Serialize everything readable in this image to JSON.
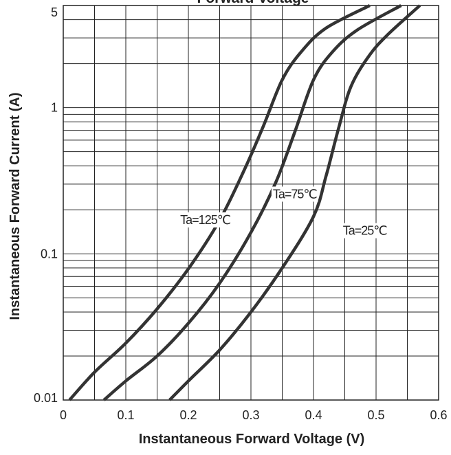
{
  "chart_data": {
    "type": "line",
    "title": "Forward Voltage",
    "xlabel": "Instantaneous Forward Voltage (V)",
    "ylabel": "Instantaneous Forward Current (A)",
    "xscale": "linear",
    "yscale": "log",
    "xlim": [
      0,
      0.6
    ],
    "ylim": [
      0.01,
      5
    ],
    "x_ticks": [
      {
        "value": 0,
        "label": "0"
      },
      {
        "value": 0.1,
        "label": "0.1"
      },
      {
        "value": 0.2,
        "label": "0.2"
      },
      {
        "value": 0.3,
        "label": "0.3"
      },
      {
        "value": 0.4,
        "label": "0.4"
      },
      {
        "value": 0.5,
        "label": "0.5"
      },
      {
        "value": 0.6,
        "label": "0.6"
      }
    ],
    "y_ticks": [
      {
        "value": 0.01,
        "label": "0.01"
      },
      {
        "value": 0.1,
        "label": "0.1"
      },
      {
        "value": 1,
        "label": "1"
      },
      {
        "value": 5,
        "label": "5"
      }
    ],
    "grid": true,
    "x_grid_step": 0.05,
    "y_grid_minor": [
      2,
      3,
      4,
      5,
      6,
      7,
      8,
      9
    ],
    "line_color": "#333333",
    "series": [
      {
        "name": "Ta=125℃",
        "label_at": {
          "x": 0.187,
          "y": 0.16
        },
        "points": [
          {
            "x": 0.01,
            "y": 0.01
          },
          {
            "x": 0.05,
            "y": 0.0155
          },
          {
            "x": 0.1,
            "y": 0.0245
          },
          {
            "x": 0.15,
            "y": 0.042
          },
          {
            "x": 0.2,
            "y": 0.079
          },
          {
            "x": 0.25,
            "y": 0.17
          },
          {
            "x": 0.29,
            "y": 0.38
          },
          {
            "x": 0.32,
            "y": 0.75
          },
          {
            "x": 0.35,
            "y": 1.55
          },
          {
            "x": 0.38,
            "y": 2.4
          },
          {
            "x": 0.42,
            "y": 3.5
          },
          {
            "x": 0.49,
            "y": 5
          }
        ]
      },
      {
        "name": "Ta=75℃",
        "label_at": {
          "x": 0.335,
          "y": 0.24
        },
        "points": [
          {
            "x": 0.065,
            "y": 0.01
          },
          {
            "x": 0.1,
            "y": 0.0135
          },
          {
            "x": 0.15,
            "y": 0.02
          },
          {
            "x": 0.2,
            "y": 0.0335
          },
          {
            "x": 0.25,
            "y": 0.063
          },
          {
            "x": 0.3,
            "y": 0.14
          },
          {
            "x": 0.34,
            "y": 0.31
          },
          {
            "x": 0.37,
            "y": 0.68
          },
          {
            "x": 0.4,
            "y": 1.55
          },
          {
            "x": 0.43,
            "y": 2.4
          },
          {
            "x": 0.47,
            "y": 3.4
          },
          {
            "x": 0.54,
            "y": 5
          }
        ]
      },
      {
        "name": "Ta=25℃",
        "label_at": {
          "x": 0.447,
          "y": 0.135
        },
        "points": [
          {
            "x": 0.17,
            "y": 0.01
          },
          {
            "x": 0.2,
            "y": 0.0135
          },
          {
            "x": 0.25,
            "y": 0.022
          },
          {
            "x": 0.3,
            "y": 0.04
          },
          {
            "x": 0.35,
            "y": 0.08
          },
          {
            "x": 0.4,
            "y": 0.18
          },
          {
            "x": 0.42,
            "y": 0.34
          },
          {
            "x": 0.44,
            "y": 0.72
          },
          {
            "x": 0.46,
            "y": 1.4
          },
          {
            "x": 0.49,
            "y": 2.3
          },
          {
            "x": 0.52,
            "y": 3.2
          },
          {
            "x": 0.57,
            "y": 5
          }
        ]
      }
    ]
  }
}
